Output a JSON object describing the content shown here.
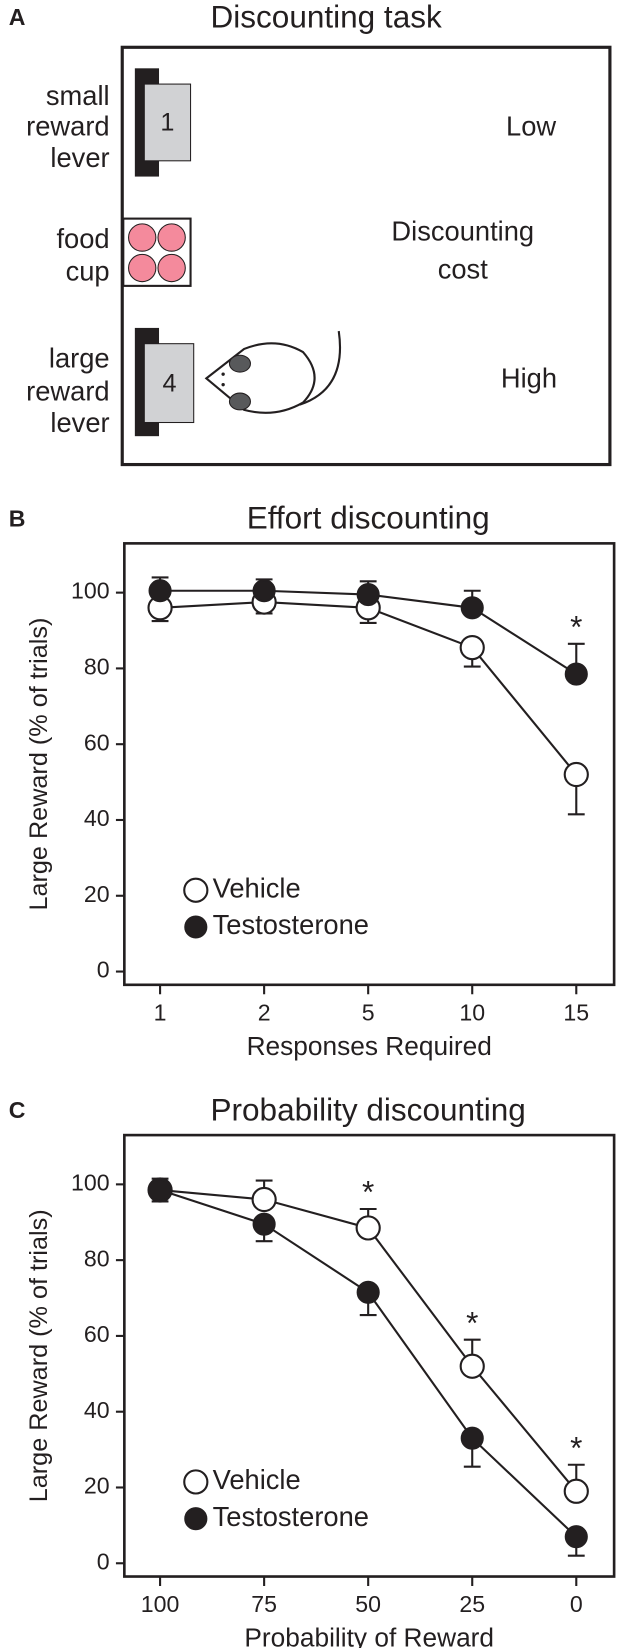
{
  "diagram": {
    "panel_label": "A",
    "title": "Discounting task",
    "small_lever_label": [
      "small",
      "reward",
      "lever"
    ],
    "small_lever_number": "1",
    "small_cost": "Low",
    "food_cup_label": [
      "food",
      "cup"
    ],
    "cost_label": [
      "Discounting",
      "cost"
    ],
    "large_lever_label": [
      "large",
      "reward",
      "lever"
    ],
    "large_lever_number": "4",
    "large_cost": "High"
  },
  "chart_data": [
    {
      "type": "line",
      "panel_label": "B",
      "title": "Effort discounting",
      "x_label": "Responses Required",
      "y_label": "Large Reward (% of trials)",
      "categories": [
        "1",
        "2",
        "5",
        "10",
        "15"
      ],
      "series": [
        {
          "name": "Vehicle",
          "marker": "open",
          "color": "#231f20",
          "values": [
            96,
            97.5,
            96,
            85.5,
            52
          ],
          "errors": [
            3.5,
            3,
            4,
            5,
            10.5
          ],
          "error_side": "down"
        },
        {
          "name": "Testosterone",
          "marker": "filled",
          "color": "#231f20",
          "values": [
            100.5,
            100.5,
            99.5,
            96,
            78.5
          ],
          "errors": [
            3.5,
            3,
            3.5,
            4.5,
            8
          ],
          "error_side": "up"
        }
      ],
      "significant": [
        false,
        false,
        false,
        false,
        true
      ],
      "significance_marker": "*",
      "ylim": [
        -3.5,
        113
      ],
      "yticks": [
        0,
        20,
        40,
        60,
        80,
        100
      ],
      "legend": "lower left"
    },
    {
      "type": "line",
      "panel_label": "C",
      "title": "Probability discounting",
      "x_label": "Probability of Reward",
      "y_label": "Large Reward (% of trials)",
      "categories": [
        "100",
        "75",
        "50",
        "25",
        "0"
      ],
      "series": [
        {
          "name": "Vehicle",
          "marker": "open",
          "color": "#231f20",
          "values": [
            98.5,
            96,
            88.5,
            52,
            19
          ],
          "errors": [
            3,
            5,
            5,
            7,
            7
          ],
          "error_side": "up"
        },
        {
          "name": "Testosterone",
          "marker": "filled",
          "color": "#231f20",
          "values": [
            98.5,
            89.5,
            71.5,
            33,
            7
          ],
          "errors": [
            3,
            4.5,
            6,
            7.5,
            5
          ],
          "error_side": "down"
        }
      ],
      "significant": [
        false,
        false,
        true,
        true,
        true
      ],
      "significance_marker": "*",
      "ylim": [
        -3.5,
        113
      ],
      "yticks": [
        0,
        20,
        40,
        60,
        80,
        100
      ],
      "legend": "lower left"
    }
  ]
}
